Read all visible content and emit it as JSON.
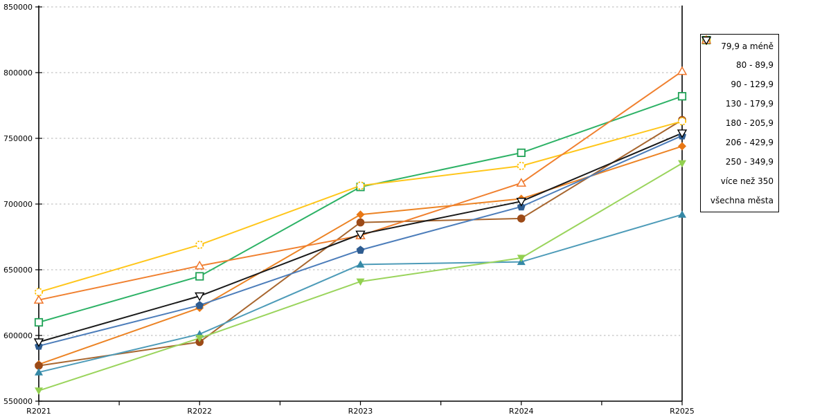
{
  "chart_data": {
    "type": "line",
    "title": "",
    "xlabel": "",
    "ylabel": "",
    "categories": [
      "R2021",
      "R2022",
      "R2023",
      "R2024",
      "R2025"
    ],
    "ylim": [
      550000,
      850000
    ],
    "ytick_step": 50000,
    "ytick_labels": [
      "550000",
      "600000",
      "650000",
      "700000",
      "750000",
      "800000",
      "850000"
    ],
    "grid": "horizontal-dashed",
    "grid_color": "#b3b3b3",
    "axis_color": "#000000",
    "legend_position": "right",
    "series": [
      {
        "name": "79,9 a méně",
        "marker": "diamond-filled",
        "color": "#E87714",
        "line_color": "#EC8324",
        "values": [
          578000,
          621000,
          692000,
          704000,
          744000
        ]
      },
      {
        "name": "80 - 89,9",
        "marker": "circle-filled",
        "color": "#9C4A17",
        "line_color": "#A8662F",
        "values": [
          577000,
          595000,
          686000,
          689000,
          764000
        ]
      },
      {
        "name": "90 - 129,9",
        "marker": "triangle-up-filled",
        "color": "#3589A6",
        "line_color": "#4D9BB8",
        "values": [
          572000,
          601000,
          654000,
          656000,
          692000
        ]
      },
      {
        "name": "130 - 179,9",
        "marker": "pentagon-filled",
        "color": "#2E5C90",
        "line_color": "#4C7DBA",
        "values": [
          592000,
          623000,
          665000,
          698000,
          752000
        ]
      },
      {
        "name": "180 - 205,9",
        "marker": "triangle-down-filled",
        "color": "#92D050",
        "line_color": "#9AD45C",
        "values": [
          558000,
          598000,
          641000,
          659000,
          731000
        ]
      },
      {
        "name": "206 - 429,9",
        "marker": "square-open",
        "color": "#1FA155",
        "line_color": "#2DB266",
        "values": [
          610000,
          645000,
          713000,
          739000,
          782000
        ]
      },
      {
        "name": "250 - 349,9",
        "marker": "circle-open-dashed",
        "color": "#FFC000",
        "line_color": "#FFC61A",
        "values": [
          633000,
          669000,
          714000,
          729000,
          763000
        ]
      },
      {
        "name": "více než 350",
        "marker": "triangle-up-open",
        "color": "#F0762B",
        "line_color": "#F0802F",
        "values": [
          627000,
          653000,
          676000,
          716000,
          801000
        ]
      },
      {
        "name": "všechna města",
        "marker": "triangle-down-open",
        "color": "#000000",
        "line_color": "#1a1a1a",
        "values": [
          595000,
          630000,
          677000,
          702000,
          754000
        ]
      }
    ]
  }
}
